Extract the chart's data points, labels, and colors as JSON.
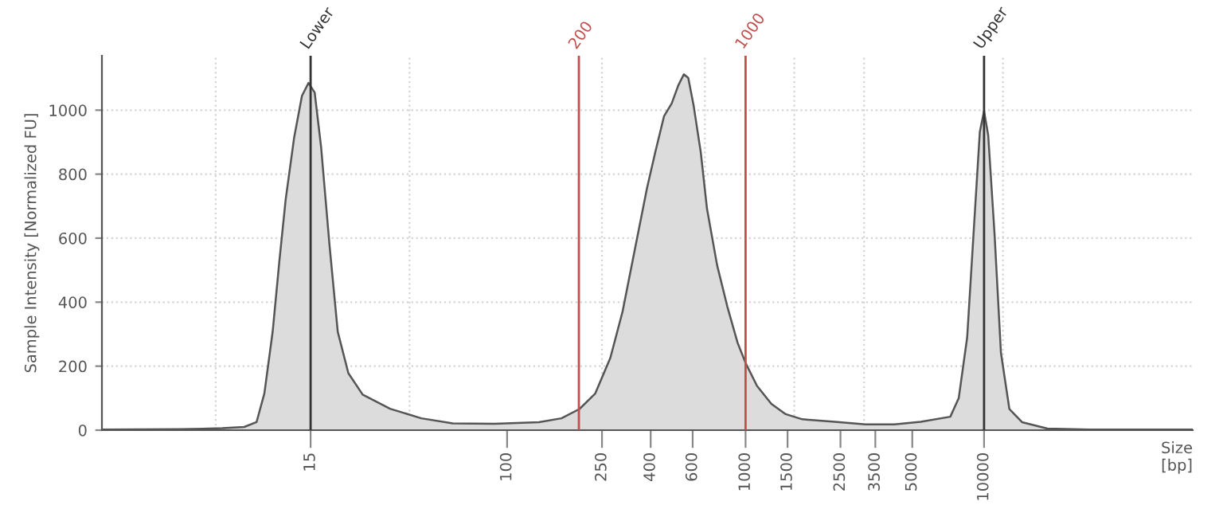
{
  "chart_data": {
    "type": "area",
    "ylabel": "Sample Intensity [Normalized FU]",
    "xlabel": "Size\n[bp]",
    "log": "x",
    "xlim": [
      2,
      75000
    ],
    "xticks": [
      15,
      100,
      250,
      400,
      600,
      1000,
      1500,
      2500,
      3500,
      5000,
      10000
    ],
    "ylim": [
      0,
      1170
    ],
    "yticks": [
      0,
      200,
      400,
      600,
      800,
      1000
    ],
    "grid": "y",
    "series": [
      {
        "color": "#dcdcdc",
        "x": [
          2,
          4.3,
          6.4,
          7.9,
          8.9,
          9.6,
          10.4,
          11.1,
          11.8,
          12.8,
          13.8,
          14.7,
          15.6,
          16.6,
          18,
          19.5,
          21.6,
          24.8,
          32.3,
          43.7,
          59.2,
          88.6,
          136,
          169,
          201,
          234,
          271,
          305,
          343,
          386,
          418,
          455,
          490,
          522,
          551,
          575,
          606,
          649,
          689,
          760,
          838,
          925,
          1000,
          1117,
          1283,
          1473,
          1729,
          2366,
          3183,
          4206,
          5426,
          7219,
          7831,
          8496,
          9030,
          9600,
          10000,
          10410,
          11070,
          11770,
          12770,
          14430,
          18430,
          27710,
          75000
        ],
        "values": [
          2,
          3,
          6,
          10,
          25,
          115,
          308,
          530,
          723,
          915,
          1045,
          1085,
          1055,
          885,
          579,
          307,
          178,
          111,
          67,
          37,
          21,
          20,
          25,
          37,
          66,
          114,
          226,
          371,
          563,
          756,
          868,
          981,
          1021,
          1077,
          1112,
          1101,
          1013,
          868,
          692,
          515,
          387,
          274,
          210,
          138,
          82,
          50,
          34,
          26,
          18,
          18,
          26,
          42,
          100,
          290,
          611,
          932,
          997,
          921,
          611,
          242,
          66,
          25,
          5,
          2,
          2
        ]
      }
    ],
    "ref_lines": [
      {
        "axis": "x",
        "value": 6,
        "color": "#d4d4d4",
        "line_style": "dotted"
      },
      {
        "axis": "x",
        "value": 39,
        "color": "#d4d4d4",
        "line_style": "dotted"
      },
      {
        "axis": "x",
        "value": 250,
        "color": "#d4d4d4",
        "line_style": "dotted"
      },
      {
        "axis": "x",
        "value": 675,
        "color": "#d4d4d4",
        "line_style": "dotted"
      },
      {
        "axis": "x",
        "value": 1600,
        "color": "#d4d4d4",
        "line_style": "dotted"
      },
      {
        "axis": "x",
        "value": 3140,
        "color": "#d4d4d4",
        "line_style": "dotted"
      },
      {
        "axis": "x",
        "value": 12000,
        "color": "#d4d4d4",
        "line_style": "dotted"
      },
      {
        "axis": "x",
        "value": 15,
        "label": "Lower",
        "color": "#333333",
        "line_style": "solid"
      },
      {
        "axis": "x",
        "value": 10000,
        "label": "Upper",
        "color": "#333333",
        "line_style": "solid"
      },
      {
        "axis": "x",
        "value": 200,
        "label": "200",
        "color": "#c0504d",
        "line_style": "solid"
      },
      {
        "axis": "x",
        "value": 1000,
        "label": "1000",
        "color": "#c0504d",
        "line_style": "solid"
      }
    ]
  }
}
